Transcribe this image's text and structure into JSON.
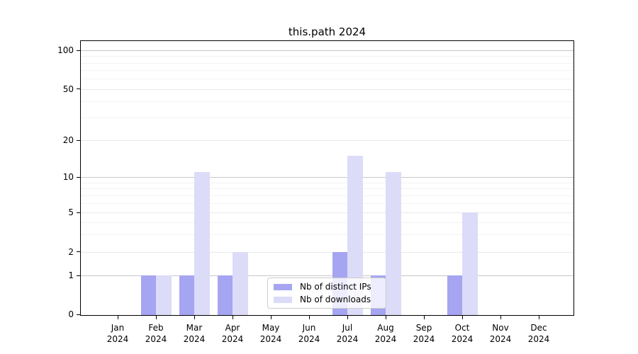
{
  "chart_data": {
    "type": "bar",
    "title": "this.path 2024",
    "year_label": "2024",
    "months": [
      "Jan",
      "Feb",
      "Mar",
      "Apr",
      "May",
      "Jun",
      "Jul",
      "Aug",
      "Sep",
      "Oct",
      "Nov",
      "Dec"
    ],
    "categories": [
      "Jan 2024",
      "Feb 2024",
      "Mar 2024",
      "Apr 2024",
      "May 2024",
      "Jun 2024",
      "Jul 2024",
      "Aug 2024",
      "Sep 2024",
      "Oct 2024",
      "Nov 2024",
      "Dec 2024"
    ],
    "series": [
      {
        "name": "Nb of distinct IPs",
        "color": "#a5a5f2",
        "values": [
          0,
          1,
          1,
          1,
          0,
          0,
          2,
          1,
          0,
          1,
          0,
          0
        ]
      },
      {
        "name": "Nb of downloads",
        "color": "#dcdcf8",
        "values": [
          0,
          1,
          11,
          2,
          0,
          0,
          15,
          11,
          0,
          5,
          0,
          0
        ]
      }
    ],
    "y_axis": {
      "scale": "log-like (0 baseline, log above 1)",
      "tick_values": [
        0,
        1,
        2,
        5,
        10,
        20,
        50,
        100
      ],
      "tick_labels": [
        "0",
        "1",
        "2",
        "5",
        "10",
        "20",
        "50",
        "100"
      ],
      "decade_gridline_values": [
        1,
        10,
        100
      ],
      "labeled_gridline_values": [
        2,
        5,
        20,
        50
      ],
      "minor_gridline_values": [
        3,
        4,
        6,
        7,
        8,
        9,
        30,
        40,
        60,
        70,
        80,
        90
      ],
      "range": [
        0,
        110
      ]
    },
    "legend": {
      "position": "lower center",
      "entries": [
        "Nb of distinct IPs",
        "Nb of downloads"
      ]
    },
    "colors": {
      "distinct_ips_bar": "#a5a5f2",
      "downloads_bar": "#dcdcf8",
      "decade_gridline": "#c6c6c6",
      "labeled_gridline": "#e9e9e9",
      "minor_gridline": "#f3f3f3",
      "axis": "#000000",
      "background": "#ffffff"
    },
    "grid": "horizontal only"
  }
}
